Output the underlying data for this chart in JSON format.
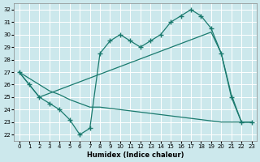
{
  "xlabel": "Humidex (Indice chaleur)",
  "bg_color": "#cce8ec",
  "grid_color": "#ffffff",
  "line_color": "#1a7a6e",
  "xlim": [
    -0.5,
    23.5
  ],
  "ylim": [
    21.5,
    32.5
  ],
  "yticks": [
    22,
    23,
    24,
    25,
    26,
    27,
    28,
    29,
    30,
    31,
    32
  ],
  "xticks": [
    0,
    1,
    2,
    3,
    4,
    5,
    6,
    7,
    8,
    9,
    10,
    11,
    12,
    13,
    14,
    15,
    16,
    17,
    18,
    19,
    20,
    21,
    22,
    23
  ],
  "line1_x": [
    0,
    1,
    2,
    3,
    4,
    5,
    6,
    7,
    8,
    9,
    10,
    11,
    12,
    13,
    14,
    15,
    16,
    17,
    18,
    19,
    20,
    21,
    22,
    23
  ],
  "line1_y": [
    27.0,
    26.0,
    25.0,
    24.5,
    24.0,
    23.2,
    22.0,
    22.5,
    28.5,
    29.5,
    30.0,
    29.5,
    29.0,
    29.5,
    30.0,
    31.0,
    31.5,
    32.0,
    31.5,
    30.5,
    28.5,
    25.0,
    23.0,
    23.0
  ],
  "line2_x": [
    0,
    2,
    19,
    20,
    21,
    22,
    23
  ],
  "line2_y": [
    27.0,
    25.0,
    30.2,
    28.5,
    25.2,
    23.0,
    23.0
  ],
  "line3_x": [
    0,
    1,
    2,
    3,
    4,
    5,
    6,
    7,
    8,
    9,
    10,
    11,
    12,
    13,
    14,
    15,
    16,
    17,
    18,
    19,
    20,
    21,
    22,
    23
  ],
  "line3_y": [
    27.0,
    26.5,
    26.0,
    25.5,
    25.2,
    24.8,
    24.5,
    24.2,
    24.2,
    24.1,
    24.0,
    23.9,
    23.8,
    23.7,
    23.6,
    23.5,
    23.4,
    23.3,
    23.2,
    23.1,
    23.0,
    23.0,
    23.0,
    23.0
  ]
}
